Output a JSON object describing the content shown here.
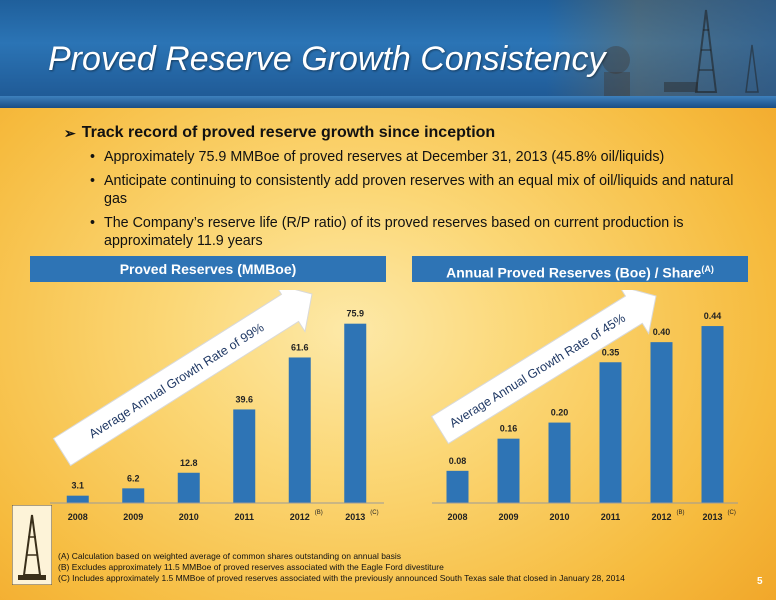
{
  "title": "Proved Reserve Growth Consistency",
  "main_bullet": "Track record of proved reserve growth since inception",
  "sub_bullets": [
    "Approximately 75.9 MMBoe of proved reserves at December 31, 2013 (45.8% oil/liquids)",
    "Anticipate continuing to consistently add proven reserves with an equal mix of oil/liquids and natural gas",
    "The Company’s reserve life (R/P ratio) of its proved reserves based on current production is approximately 11.9 years"
  ],
  "bullet_glyph": "•",
  "arrow_glyph": "➢",
  "left_panel_title": "Proved Reserves (MMBoe)",
  "right_panel_title": "Annual Proved Reserves (Boe) / Share",
  "right_panel_title_sup": "(A)",
  "chart_data": [
    {
      "type": "bar",
      "title": "Proved Reserves (MMBoe)",
      "categories": [
        "2008",
        "2009",
        "2010",
        "2011",
        "2012",
        "2013"
      ],
      "category_superscripts": [
        "",
        "",
        "",
        "",
        "(B)",
        "(C)"
      ],
      "values": [
        3.1,
        6.2,
        12.8,
        39.6,
        61.6,
        75.9
      ],
      "value_labels": [
        "3.1",
        "6.2",
        "12.8",
        "39.6",
        "61.6",
        "75.9"
      ],
      "ylim": [
        0,
        80
      ],
      "annotation": "Average Annual Growth Rate of 99%",
      "bar_color": "#2e74b5",
      "grid": false
    },
    {
      "type": "bar",
      "title": "Annual Proved Reserves (Boe) / Share",
      "categories": [
        "2008",
        "2009",
        "2010",
        "2011",
        "2012",
        "2013"
      ],
      "category_superscripts": [
        "",
        "",
        "",
        "",
        "(B)",
        "(C)"
      ],
      "values": [
        0.08,
        0.16,
        0.2,
        0.35,
        0.4,
        0.44
      ],
      "value_labels": [
        "0.08",
        "0.16",
        "0.20",
        "0.35",
        "0.40",
        "0.44"
      ],
      "ylim": [
        0,
        0.47
      ],
      "annotation": "Average Annual Growth Rate of 45%",
      "bar_color": "#2e74b5",
      "grid": false
    }
  ],
  "footnotes": [
    "(A) Calculation based on weighted average of common shares outstanding on annual basis",
    "(B) Excludes approximately 11.5 MMBoe of proved reserves associated with the Eagle Ford divestiture",
    "(C) Includes approximately 1.5 MMBoe of proved reserves associated with the previously announced South Texas sale that closed in January 28, 2014"
  ],
  "page_number": "5",
  "colors": {
    "header_blue": "#2b74b5",
    "bar_blue": "#2e74b5",
    "background_gold": "#f6c24a"
  }
}
